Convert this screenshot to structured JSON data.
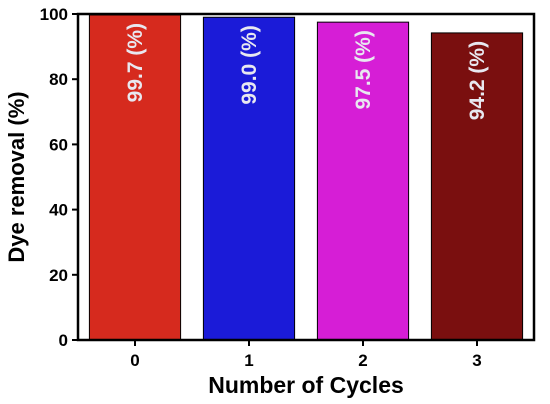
{
  "chart_data": {
    "type": "bar",
    "categories": [
      "0",
      "1",
      "2",
      "3"
    ],
    "values": [
      99.7,
      99.0,
      97.5,
      94.2
    ],
    "data_labels": [
      "99.7 (%)",
      "99.0 (%)",
      "97.5 (%)",
      "94.2 (%)"
    ],
    "colors": [
      "#d62a1e",
      "#1b1bd8",
      "#d61ed6",
      "#7a0f0f"
    ],
    "xlabel": "Number of Cycles",
    "ylabel": "Dye removal (%)",
    "ylim": [
      0,
      100
    ],
    "yticks": [
      "0",
      "20",
      "40",
      "60",
      "80",
      "100"
    ],
    "grid": false,
    "legend": "none"
  }
}
